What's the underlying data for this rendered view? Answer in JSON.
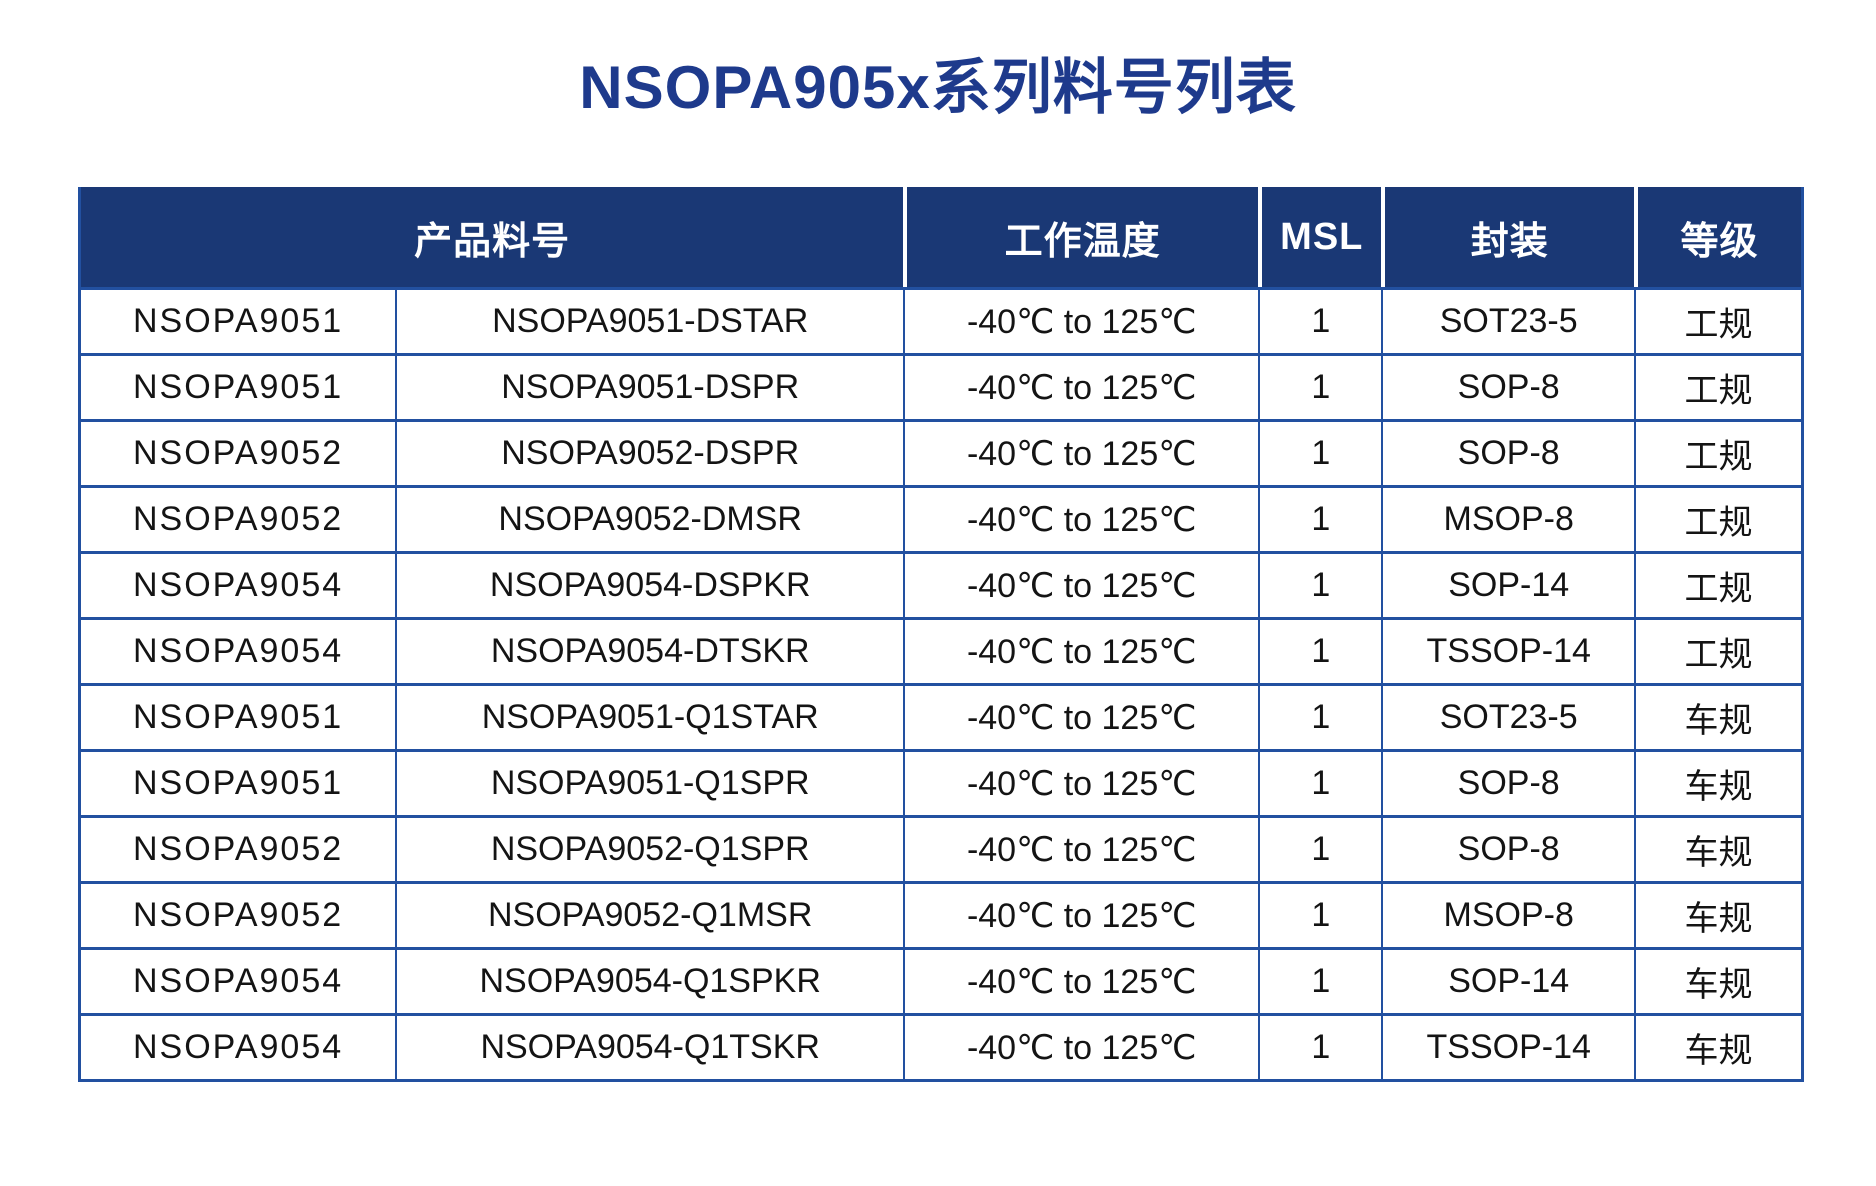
{
  "title": "NSOPA905x系列料号列表",
  "colors": {
    "title_blue": "#1e3a8c",
    "navy_header": "#1a3875",
    "border_blue": "#2250a0",
    "text_dark": "#141414"
  },
  "table": {
    "headers": [
      "产品料号",
      "工作温度",
      "MSL",
      "封装",
      "等级"
    ],
    "rows": [
      [
        "NSOPA9051",
        "NSOPA9051-DSTAR",
        "-40℃ to 125℃",
        "1",
        "SOT23-5",
        "工规"
      ],
      [
        "NSOPA9051",
        "NSOPA9051-DSPR",
        "-40℃ to 125℃",
        "1",
        "SOP-8",
        "工规"
      ],
      [
        "NSOPA9052",
        "NSOPA9052-DSPR",
        "-40℃ to 125℃",
        "1",
        "SOP-8",
        "工规"
      ],
      [
        "NSOPA9052",
        "NSOPA9052-DMSR",
        "-40℃ to 125℃",
        "1",
        "MSOP-8",
        "工规"
      ],
      [
        "NSOPA9054",
        "NSOPA9054-DSPKR",
        "-40℃ to 125℃",
        "1",
        "SOP-14",
        "工规"
      ],
      [
        "NSOPA9054",
        "NSOPA9054-DTSKR",
        "-40℃ to 125℃",
        "1",
        "TSSOP-14",
        "工规"
      ],
      [
        "NSOPA9051",
        "NSOPA9051-Q1STAR",
        "-40℃ to 125℃",
        "1",
        "SOT23-5",
        "车规"
      ],
      [
        "NSOPA9051",
        "NSOPA9051-Q1SPR",
        "-40℃ to 125℃",
        "1",
        "SOP-8",
        "车规"
      ],
      [
        "NSOPA9052",
        "NSOPA9052-Q1SPR",
        "-40℃ to 125℃",
        "1",
        "SOP-8",
        "车规"
      ],
      [
        "NSOPA9052",
        "NSOPA9052-Q1MSR",
        "-40℃ to 125℃",
        "1",
        "MSOP-8",
        "车规"
      ],
      [
        "NSOPA9054",
        "NSOPA9054-Q1SPKR",
        "-40℃ to 125℃",
        "1",
        "SOP-14",
        "车规"
      ],
      [
        "NSOPA9054",
        "NSOPA9054-Q1TSKR",
        "-40℃ to 125℃",
        "1",
        "TSSOP-14",
        "车规"
      ]
    ]
  }
}
